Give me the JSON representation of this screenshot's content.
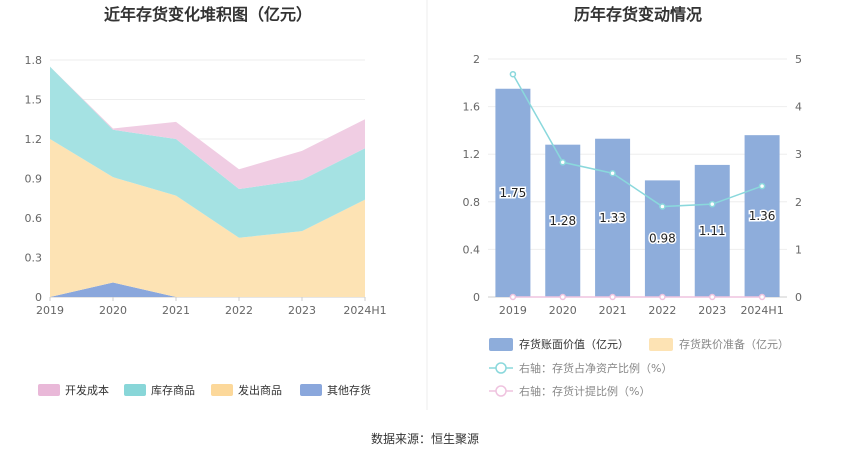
{
  "source_label": "数据来源：恒生聚源",
  "left_chart": {
    "title": "近年存货变化堆积图（亿元）",
    "type": "area",
    "categories": [
      "2019",
      "2020",
      "2021",
      "2022",
      "2023",
      "2024H1"
    ],
    "ylim": [
      0,
      1.8
    ],
    "yticks": [
      "0",
      "0.3",
      "0.6",
      "0.9",
      "1.2",
      "1.5",
      "1.8"
    ],
    "series": [
      {
        "name": "其他存货",
        "color": "#8aa7dc",
        "values": [
          0.0,
          0.11,
          0.0,
          0.0,
          0.0,
          0.0
        ]
      },
      {
        "name": "发出商品",
        "color": "#fde3b4",
        "values": [
          1.2,
          0.8,
          0.77,
          0.45,
          0.5,
          0.74
        ]
      },
      {
        "name": "库存商品",
        "color": "#a5e2e3",
        "values": [
          0.55,
          0.36,
          0.43,
          0.37,
          0.39,
          0.39
        ]
      },
      {
        "name": "开发成本",
        "color": "#f0cde3",
        "values": [
          0.0,
          0.01,
          0.13,
          0.15,
          0.22,
          0.22
        ]
      }
    ],
    "legend": [
      {
        "label": "开发成本",
        "color": "#e9b8d8"
      },
      {
        "label": "库存商品",
        "color": "#88d6d8"
      },
      {
        "label": "发出商品",
        "color": "#fcd89a"
      },
      {
        "label": "其他存货",
        "color": "#8aa7dc"
      }
    ]
  },
  "right_chart": {
    "title": "历年存货变动情况",
    "type": "bar",
    "categories": [
      "2019",
      "2020",
      "2021",
      "2022",
      "2023",
      "2024H1"
    ],
    "ylim_left": [
      0,
      2
    ],
    "yticks_left": [
      "0",
      "0.4",
      "0.8",
      "1.2",
      "1.6",
      "2"
    ],
    "ylim_right": [
      0,
      5
    ],
    "yticks_right": [
      "0",
      "1",
      "2",
      "3",
      "4",
      "5"
    ],
    "bars": {
      "name": "存货账面价值（亿元）",
      "color": "#8eaddb",
      "values": [
        1.75,
        1.28,
        1.33,
        0.98,
        1.11,
        1.36
      ],
      "labels": [
        "1.75",
        "1.28",
        "1.33",
        "0.98",
        "1.11",
        "1.36"
      ]
    },
    "line_ratio": {
      "name": "右轴：存货占净资产比例（%）",
      "color": "#8ad8dc",
      "values": [
        4.68,
        2.83,
        2.6,
        1.9,
        1.95,
        2.33
      ]
    },
    "line_provision": {
      "name": "右轴：存货计提比例（%）",
      "color": "#efc3df",
      "values": [
        0,
        0,
        0,
        0,
        0,
        0
      ]
    },
    "legend": [
      {
        "label": "存货账面价值（亿元）",
        "color": "#8eaddb",
        "muted": false
      },
      {
        "label": "存货跌价准备（亿元）",
        "color": "#fde3b4",
        "muted": true
      },
      {
        "label": "右轴：存货占净资产比例（%）",
        "color": "#8ad8dc",
        "muted": true
      },
      {
        "label": "右轴：存货计提比例（%）",
        "color": "#efc3df",
        "muted": true
      }
    ]
  }
}
